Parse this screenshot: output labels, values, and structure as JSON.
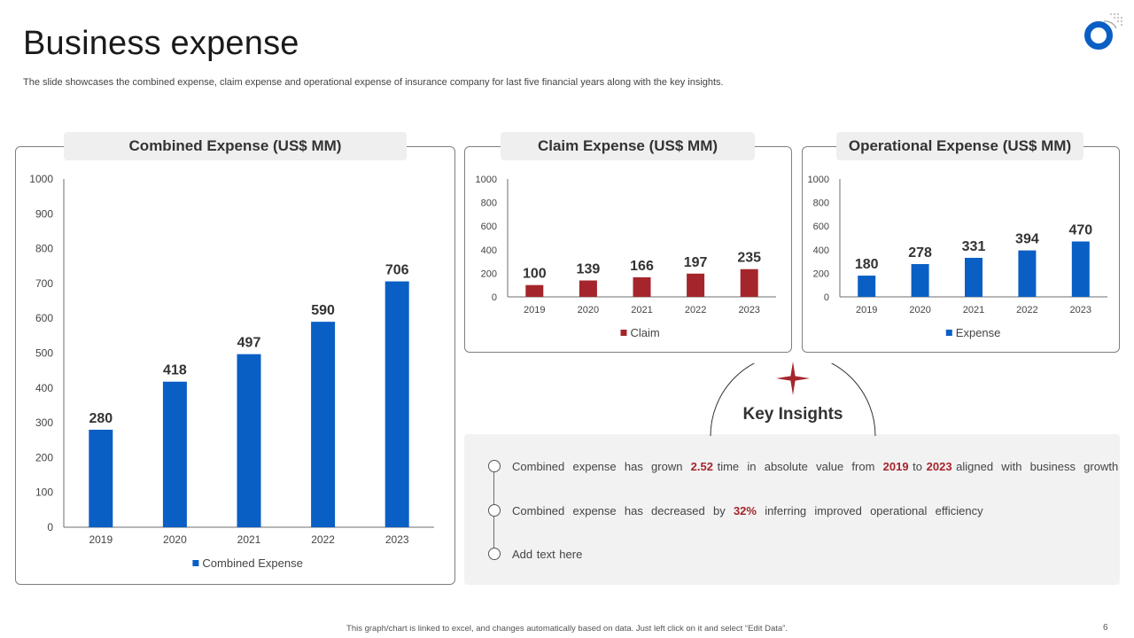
{
  "page": {
    "title": "Business expense",
    "subtitle": "The slide showcases the combined expense, claim expense and operational expense of insurance company for last five financial years along with the key insights.",
    "footer": "This graph/chart is linked to excel, and changes automatically based on data. Just left click on it and select “Edit Data”.",
    "page_number": "6"
  },
  "colors": {
    "blue": "#0a5fc4",
    "red": "#a4262c",
    "panel_border": "#7f7f7f"
  },
  "chart_data": [
    {
      "id": "combined",
      "type": "bar",
      "title": "Combined Expense (US$ MM)",
      "categories": [
        "2019",
        "2020",
        "2021",
        "2022",
        "2023"
      ],
      "series": [
        {
          "name": "Combined Expense",
          "values": [
            280,
            418,
            497,
            590,
            706
          ],
          "color": "#0a5fc4"
        }
      ],
      "ylim": [
        0,
        1000
      ],
      "yticks": [
        0,
        100,
        200,
        300,
        400,
        500,
        600,
        700,
        800,
        900,
        1000
      ],
      "legend": "bottom"
    },
    {
      "id": "claim",
      "type": "bar",
      "title": "Claim Expense (US$ MM)",
      "categories": [
        "2019",
        "2020",
        "2021",
        "2022",
        "2023"
      ],
      "series": [
        {
          "name": "Claim",
          "values": [
            100,
            139,
            166,
            197,
            235
          ],
          "color": "#a4262c"
        }
      ],
      "ylim": [
        0,
        1000
      ],
      "yticks": [
        0,
        200,
        400,
        600,
        800,
        1000
      ],
      "legend": "bottom"
    },
    {
      "id": "operational",
      "type": "bar",
      "title": "Operational Expense (US$ MM)",
      "categories": [
        "2019",
        "2020",
        "2021",
        "2022",
        "2023"
      ],
      "series": [
        {
          "name": "Expense",
          "values": [
            180,
            278,
            331,
            394,
            470
          ],
          "color": "#0a5fc4"
        }
      ],
      "ylim": [
        0,
        1000
      ],
      "yticks": [
        0,
        200,
        400,
        600,
        800,
        1000
      ],
      "legend": "bottom"
    }
  ],
  "insights": {
    "heading": "Key Insights",
    "items": [
      {
        "parts": [
          {
            "t": "Combined  expense  has  grown  "
          },
          {
            "t": "2.52",
            "hl": true
          },
          {
            "t": " time  in  absolute  value  from  "
          },
          {
            "t": "2019",
            "hl": true
          },
          {
            "t": " to "
          },
          {
            "t": "2023",
            "hl": true
          },
          {
            "t": " aligned  with  business  growth"
          }
        ]
      },
      {
        "parts": [
          {
            "t": "Combined  expense  has  decreased  by  "
          },
          {
            "t": "32%",
            "hl": true
          },
          {
            "t": "  inferring  improved  operational  efficiency"
          }
        ]
      },
      {
        "parts": [
          {
            "t": "Add text here"
          }
        ]
      }
    ]
  }
}
